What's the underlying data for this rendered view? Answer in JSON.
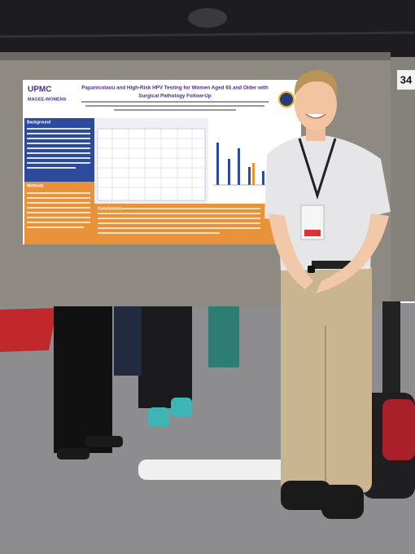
{
  "poster": {
    "logo": "UPMC",
    "logo_sub": "MAGEE-WOMENS",
    "title_lines": [
      "Papanicolaou and High-Risk HPV Testing for Women Aged 65 and Older with",
      "Surgical Pathology Follow-Up"
    ],
    "headings": [
      "Background",
      "Methods",
      "Conclusions"
    ]
  },
  "board_number": "34"
}
